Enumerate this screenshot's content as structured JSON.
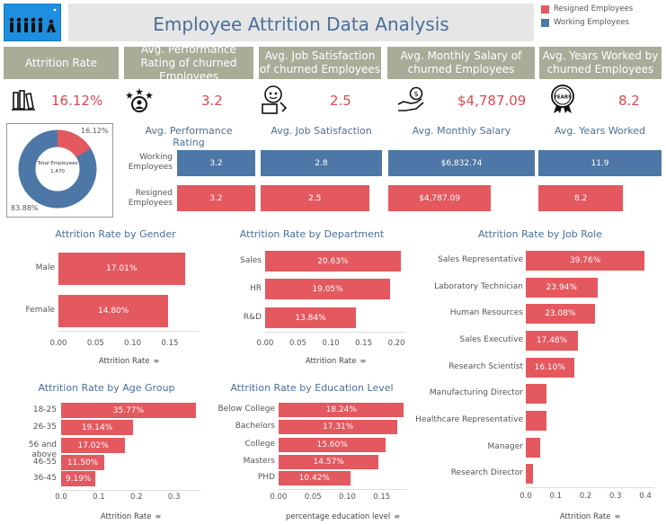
{
  "header": {
    "title": "Employee Attrition Data Analysis",
    "legend": [
      {
        "label": "Resigned Employees",
        "color": "#e4585f"
      },
      {
        "label": "Working Employees",
        "color": "#4c77a6"
      }
    ]
  },
  "kpis": [
    {
      "label": "Attrition Rate",
      "value": "16.12%",
      "icon": "books-icon"
    },
    {
      "label": "Avg. Performance Rating of churned Employees",
      "value": "3.2",
      "icon": "rating-person-icon"
    },
    {
      "label": "Avg. Job Satisfaction of churned Employees",
      "value": "2.5",
      "icon": "satisfaction-icon"
    },
    {
      "label": "Avg. Monthly Salary of churned Employees",
      "value": "$4,787.09",
      "icon": "salary-hand-icon"
    },
    {
      "label": "Avg. Years Worked by churned Employees",
      "value": "8.2",
      "icon": "years-badge-icon"
    }
  ],
  "donut": {
    "center_label": "Total Employees",
    "center_value": "1,470",
    "resigned_pct_label": "16.12%",
    "working_pct_label": "83.88%",
    "resigned_fraction": 0.1612
  },
  "comparison": {
    "row_labels": [
      "Working Employees",
      "Resigned Employees"
    ],
    "panels": [
      {
        "title": "Avg. Performance Rating",
        "working": "3.2",
        "resigned": "3.2",
        "working_value": 3.2,
        "resigned_value": 3.2,
        "max": 3.2
      },
      {
        "title": "Avg. Job Satisfaction",
        "working": "2.8",
        "resigned": "2.5",
        "working_value": 2.8,
        "resigned_value": 2.5,
        "max": 2.8
      },
      {
        "title": "Avg. Monthly Salary",
        "working": "$6,832.74",
        "resigned": "$4,787.09",
        "working_value": 6832.74,
        "resigned_value": 4787.09,
        "max": 6832.74
      },
      {
        "title": "Avg. Years Worked",
        "working": "11.9",
        "resigned": "8.2",
        "working_value": 11.9,
        "resigned_value": 8.2,
        "max": 11.9
      }
    ]
  },
  "chart_data": [
    {
      "type": "bar",
      "title": "Attrition Rate by Gender",
      "categories": [
        "Male",
        "Female"
      ],
      "values": [
        0.1701,
        0.148
      ],
      "labels": [
        "17.01%",
        "14.80%"
      ],
      "xlabel": "Attrition Rate",
      "xticks": [
        "0.00",
        "0.05",
        "0.10",
        "0.15"
      ],
      "xlim": [
        0,
        0.19
      ]
    },
    {
      "type": "bar",
      "title": "Attrition Rate by Department",
      "categories": [
        "Sales",
        "HR",
        "R&D"
      ],
      "values": [
        0.2063,
        0.1905,
        0.1384
      ],
      "labels": [
        "20.63%",
        "19.05%",
        "13.84%"
      ],
      "xlabel": "Attrition Rate",
      "xticks": [
        "0.00",
        "0.05",
        "0.10",
        "0.15",
        "0.20"
      ],
      "xlim": [
        0,
        0.215
      ]
    },
    {
      "type": "bar",
      "title": "Attrition Rate by Job Role",
      "categories": [
        "Sales Representative",
        "Laboratory Technician",
        "Human Resources",
        "Sales Executive",
        "Research Scientist",
        "Manufacturing Director",
        "Healthcare Representative",
        "Manager",
        "Research Director"
      ],
      "values": [
        0.3976,
        0.2394,
        0.2308,
        0.1748,
        0.161,
        0.069,
        0.069,
        0.049,
        0.025
      ],
      "labels": [
        "39.76%",
        "23.94%",
        "23.08%",
        "17.48%",
        "16.10%",
        "",
        "",
        "",
        ""
      ],
      "xlabel": "Attrition Rate",
      "xticks": [
        "0.0",
        "0.1",
        "0.2",
        "0.3",
        "0.4"
      ],
      "xlim": [
        0,
        0.43
      ]
    },
    {
      "type": "bar",
      "title": "Attrition Rate by Age Group",
      "categories": [
        "18-25",
        "26-35",
        "56 and above",
        "46-55",
        "36-45"
      ],
      "values": [
        0.3577,
        0.1914,
        0.1702,
        0.115,
        0.0919
      ],
      "labels": [
        "35.77%",
        "19.14%",
        "17.02%",
        "11.50%",
        "9.19%"
      ],
      "xlabel": "Attrition Rate",
      "xticks": [
        "0.0",
        "0.1",
        "0.2",
        "0.3"
      ],
      "xlim": [
        0,
        0.37
      ]
    },
    {
      "type": "bar",
      "title": "Attrition Rate by Education Level",
      "categories": [
        "Below College",
        "Bachelors",
        "College",
        "Masters",
        "PHD"
      ],
      "values": [
        0.1824,
        0.1731,
        0.156,
        0.1457,
        0.1042
      ],
      "labels": [
        "18.24%",
        "17.31%",
        "15.60%",
        "14.57%",
        "10.42%"
      ],
      "xlabel": "percentage education level",
      "xticks": [
        "0.00",
        "0.05",
        "0.10",
        "0.15"
      ],
      "xlim": [
        0,
        0.187
      ]
    }
  ]
}
